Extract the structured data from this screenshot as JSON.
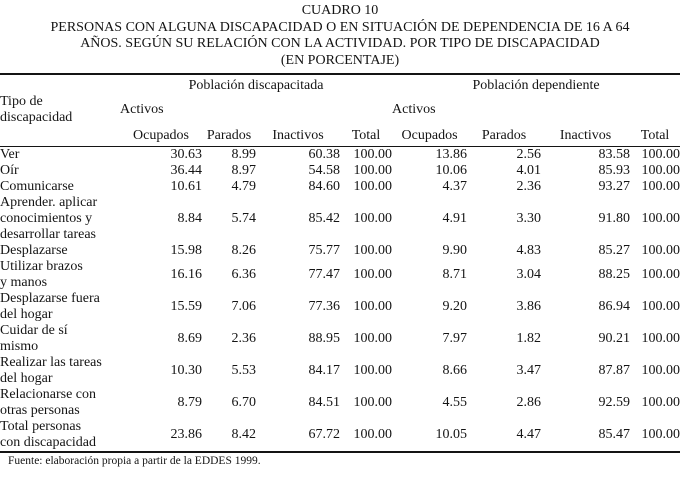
{
  "title": {
    "cuadro": "CUADRO 10",
    "main": "PERSONAS CON ALGUNA DISCAPACIDAD O EN SITUACIÓN DE DEPENDENCIA DE 16 A 64\nAÑOS. SEGÚN SU RELACIÓN CON LA ACTIVIDAD. POR TIPO DE DISCAPACIDAD\n(EN PORCENTAJE)"
  },
  "chart_data": {
    "type": "table",
    "title": "CUADRO 10 — PERSONAS CON ALGUNA DISCAPACIDAD O EN SITUACIÓN DE DEPENDENCIA DE 16 A 64 AÑOS. SEGÚN SU RELACIÓN CON LA ACTIVIDAD. POR TIPO DE DISCAPACIDAD (EN PORCENTAJE)",
    "row_header": "Tipo de\ndiscapacidad",
    "groups": [
      {
        "label": "Población discapacitada",
        "sub": "Activos"
      },
      {
        "label": "Población dependiente",
        "sub": "Activos"
      }
    ],
    "columns": [
      "Ocupados",
      "Parados",
      "Inactivos",
      "Total",
      "Ocupados",
      "Parados",
      "Inactivos",
      "Total"
    ],
    "rows": [
      {
        "label": "Ver",
        "values": [
          "30.63",
          "8.99",
          "60.38",
          "100.00",
          "13.86",
          "2.56",
          "83.58",
          "100.00"
        ]
      },
      {
        "label": "Oír",
        "values": [
          "36.44",
          "8.97",
          "54.58",
          "100.00",
          "10.06",
          "4.01",
          "85.93",
          "100.00"
        ]
      },
      {
        "label": "Comunicarse",
        "values": [
          "10.61",
          "4.79",
          "84.60",
          "100.00",
          "4.37",
          "2.36",
          "93.27",
          "100.00"
        ]
      },
      {
        "label": "Aprender. aplicar\nconocimientos y\ndesarrollar tareas",
        "values": [
          "8.84",
          "5.74",
          "85.42",
          "100.00",
          "4.91",
          "3.30",
          "91.80",
          "100.00"
        ]
      },
      {
        "label": "Desplazarse",
        "values": [
          "15.98",
          "8.26",
          "75.77",
          "100.00",
          "9.90",
          "4.83",
          "85.27",
          "100.00"
        ]
      },
      {
        "label": "Utilizar brazos\ny manos",
        "values": [
          "16.16",
          "6.36",
          "77.47",
          "100.00",
          "8.71",
          "3.04",
          "88.25",
          "100.00"
        ]
      },
      {
        "label": "Desplazarse fuera\ndel hogar",
        "values": [
          "15.59",
          "7.06",
          "77.36",
          "100.00",
          "9.20",
          "3.86",
          "86.94",
          "100.00"
        ]
      },
      {
        "label": "Cuidar de sí\nmismo",
        "values": [
          "8.69",
          "2.36",
          "88.95",
          "100.00",
          "7.97",
          "1.82",
          "90.21",
          "100.00"
        ]
      },
      {
        "label": "Realizar las tareas\ndel hogar",
        "values": [
          "10.30",
          "5.53",
          "84.17",
          "100.00",
          "8.66",
          "3.47",
          "87.87",
          "100.00"
        ]
      },
      {
        "label": "Relacionarse con\notras personas",
        "values": [
          "8.79",
          "6.70",
          "84.51",
          "100.00",
          "4.55",
          "2.86",
          "92.59",
          "100.00"
        ]
      },
      {
        "label": "Total personas\ncon discapacidad",
        "values": [
          "23.86",
          "8.42",
          "67.72",
          "100.00",
          "10.05",
          "4.47",
          "85.47",
          "100.00"
        ]
      }
    ]
  },
  "footer": {
    "source": "Fuente: elaboración propia a partir de la EDDES 1999."
  },
  "colors": {
    "background": "#ffffff",
    "text": "#141414",
    "rule": "#141414"
  }
}
